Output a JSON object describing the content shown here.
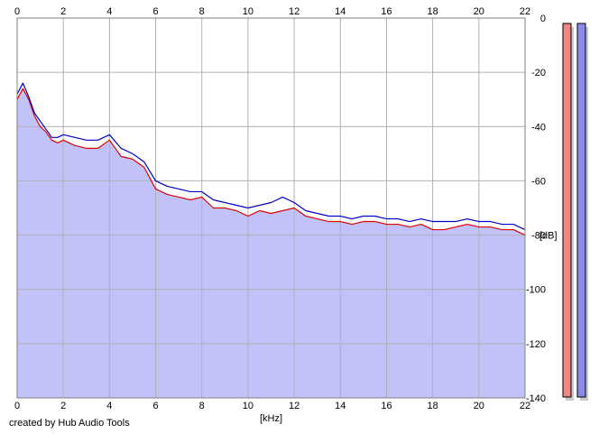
{
  "credit": "created by Hub Audio Tools",
  "chart_data": {
    "type": "line",
    "title": "",
    "xlabel": "[kHz]",
    "ylabel": "[dB]",
    "xlim": [
      0,
      22
    ],
    "ylim": [
      -140,
      0
    ],
    "x_ticks": [
      0,
      2,
      4,
      6,
      8,
      10,
      12,
      14,
      16,
      18,
      20,
      22
    ],
    "y_ticks": [
      0,
      -20,
      -40,
      -60,
      -80,
      -100,
      -120,
      -140
    ],
    "y_tick_labels": [
      "0",
      "-20",
      "-40",
      "-60",
      "-80",
      "-100",
      "-120",
      "-140"
    ],
    "grid": true,
    "colors": {
      "fill": "#c2c2fb",
      "left_channel": "#e00000",
      "right_channel": "#0000cc",
      "grid": "#b0b0b0",
      "meter_left": "#f08585",
      "meter_right": "#8a8aec",
      "meter_shadow": "#c8c8c8"
    },
    "series": [
      {
        "color": "#e00000",
        "x": [
          0.0,
          0.25,
          0.5,
          0.75,
          1.0,
          1.25,
          1.5,
          1.75,
          2.0,
          2.5,
          3.0,
          3.5,
          4.0,
          4.5,
          5.0,
          5.5,
          6.0,
          6.5,
          7.0,
          7.5,
          8.0,
          8.5,
          9.0,
          9.5,
          10.0,
          10.5,
          11.0,
          11.5,
          12.0,
          12.5,
          13.0,
          13.5,
          14.0,
          14.5,
          15.0,
          15.5,
          16.0,
          16.5,
          17.0,
          17.5,
          18.0,
          18.5,
          19.0,
          19.5,
          20.0,
          20.5,
          21.0,
          21.5,
          22.0
        ],
        "values": [
          -30,
          -26,
          -30,
          -36,
          -40,
          -42,
          -45,
          -46,
          -45,
          -47,
          -48,
          -48,
          -45,
          -51,
          -52,
          -55,
          -63,
          -65,
          -66,
          -67,
          -66,
          -70,
          -70,
          -71,
          -73,
          -71,
          -72,
          -71,
          -70,
          -73,
          -74,
          -75,
          -75,
          -76,
          -75,
          -75,
          -76,
          -76,
          -77,
          -76,
          -78,
          -78,
          -77,
          -76,
          -77,
          -77,
          -78,
          -78,
          -80
        ]
      },
      {
        "color": "#0000cc",
        "x": [
          0.0,
          0.25,
          0.5,
          0.75,
          1.0,
          1.25,
          1.5,
          1.75,
          2.0,
          2.5,
          3.0,
          3.5,
          4.0,
          4.5,
          5.0,
          5.5,
          6.0,
          6.5,
          7.0,
          7.5,
          8.0,
          8.5,
          9.0,
          9.5,
          10.0,
          10.5,
          11.0,
          11.5,
          12.0,
          12.5,
          13.0,
          13.5,
          14.0,
          14.5,
          15.0,
          15.5,
          16.0,
          16.5,
          17.0,
          17.5,
          18.0,
          18.5,
          19.0,
          19.5,
          20.0,
          20.5,
          21.0,
          21.5,
          22.0
        ],
        "values": [
          -28,
          -24,
          -29,
          -35,
          -38,
          -41,
          -44,
          -44,
          -43,
          -44,
          -45,
          -45,
          -43,
          -48,
          -50,
          -53,
          -60,
          -62,
          -63,
          -64,
          -64,
          -67,
          -68,
          -69,
          -70,
          -69,
          -68,
          -66,
          -68,
          -71,
          -72,
          -73,
          -73,
          -74,
          -73,
          -73,
          -74,
          -74,
          -75,
          -74,
          -75,
          -75,
          -75,
          -74,
          -75,
          -75,
          -76,
          -76,
          -78
        ]
      }
    ],
    "filled_under": true,
    "meters": [
      {
        "channel": "left",
        "level": 1.0
      },
      {
        "channel": "right",
        "level": 1.0
      }
    ]
  }
}
